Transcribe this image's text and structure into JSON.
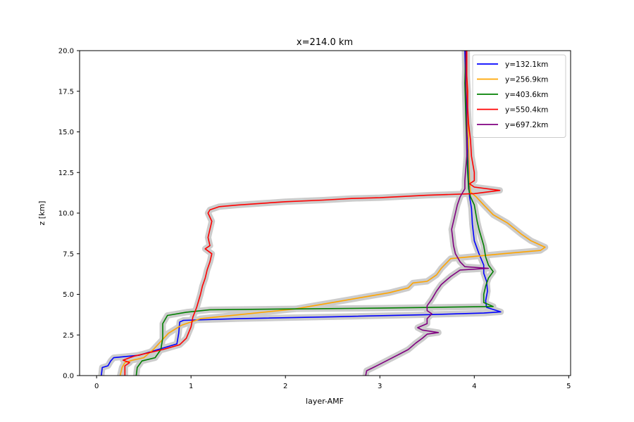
{
  "chart_data": {
    "type": "line",
    "title": "x=214.0 km",
    "xlabel": "layer-AMF",
    "ylabel": "z [km]",
    "xlim": [
      -0.18,
      5.02
    ],
    "ylim": [
      0,
      20
    ],
    "xticks": [
      0,
      1,
      2,
      3,
      4,
      5
    ],
    "yticks": [
      "0.0",
      "2.5",
      "5.0",
      "7.5",
      "10.0",
      "12.5",
      "15.0",
      "17.5",
      "20.0"
    ],
    "grid": false,
    "legend_position": "top-right",
    "band_color": "#cccccc",
    "series": [
      {
        "name": "y=132.1km",
        "color": "#0000ff",
        "points": [
          [
            0.05,
            0
          ],
          [
            0.06,
            0.5
          ],
          [
            0.12,
            0.6
          ],
          [
            0.15,
            0.9
          ],
          [
            0.18,
            1.1
          ],
          [
            0.45,
            1.25
          ],
          [
            0.65,
            1.6
          ],
          [
            0.85,
            1.95
          ],
          [
            0.87,
            2.6
          ],
          [
            0.88,
            3.3
          ],
          [
            0.92,
            3.4
          ],
          [
            1.5,
            3.5
          ],
          [
            2.5,
            3.62
          ],
          [
            3.5,
            3.75
          ],
          [
            4.1,
            3.85
          ],
          [
            4.28,
            3.92
          ],
          [
            4.13,
            4.2
          ],
          [
            4.12,
            4.6
          ],
          [
            4.14,
            5.2
          ],
          [
            4.13,
            5.8
          ],
          [
            4.1,
            6.3
          ],
          [
            4.1,
            6.8
          ],
          [
            4.05,
            7.5
          ],
          [
            4.0,
            8.3
          ],
          [
            3.98,
            9.3
          ],
          [
            3.97,
            10.3
          ],
          [
            3.95,
            11.0
          ],
          [
            3.94,
            12.0
          ],
          [
            3.93,
            13.5
          ],
          [
            3.92,
            15.5
          ],
          [
            3.91,
            17.5
          ],
          [
            3.9,
            20
          ]
        ]
      },
      {
        "name": "y=256.9km",
        "color": "#ffa500",
        "points": [
          [
            0.25,
            0
          ],
          [
            0.27,
            0.5
          ],
          [
            0.3,
            0.8
          ],
          [
            0.38,
            0.95
          ],
          [
            0.5,
            1.1
          ],
          [
            0.6,
            1.6
          ],
          [
            0.68,
            2.1
          ],
          [
            0.76,
            2.6
          ],
          [
            0.9,
            3.1
          ],
          [
            1.1,
            3.5
          ],
          [
            1.6,
            3.8
          ],
          [
            2.1,
            4.1
          ],
          [
            2.5,
            4.5
          ],
          [
            2.8,
            4.8
          ],
          [
            3.1,
            5.1
          ],
          [
            3.3,
            5.4
          ],
          [
            3.35,
            5.7
          ],
          [
            3.5,
            5.8
          ],
          [
            3.6,
            6.2
          ],
          [
            3.65,
            6.6
          ],
          [
            3.75,
            7.2
          ],
          [
            4.3,
            7.5
          ],
          [
            4.7,
            7.7
          ],
          [
            4.75,
            7.9
          ],
          [
            4.6,
            8.3
          ],
          [
            4.5,
            8.7
          ],
          [
            4.35,
            9.4
          ],
          [
            4.2,
            9.9
          ],
          [
            4.1,
            10.5
          ],
          [
            4.02,
            11.0
          ],
          [
            3.96,
            11.3
          ],
          [
            3.95,
            12.0
          ],
          [
            3.94,
            14.0
          ],
          [
            3.93,
            16.0
          ],
          [
            3.92,
            18.0
          ],
          [
            3.92,
            20
          ]
        ]
      },
      {
        "name": "y=403.6km",
        "color": "#008000",
        "points": [
          [
            0.42,
            0
          ],
          [
            0.43,
            0.5
          ],
          [
            0.48,
            0.9
          ],
          [
            0.62,
            1.1
          ],
          [
            0.68,
            1.6
          ],
          [
            0.7,
            2.3
          ],
          [
            0.7,
            3.2
          ],
          [
            0.75,
            3.7
          ],
          [
            0.95,
            3.9
          ],
          [
            1.2,
            4.05
          ],
          [
            2.0,
            4.1
          ],
          [
            3.0,
            4.15
          ],
          [
            4.2,
            4.25
          ],
          [
            4.1,
            4.5
          ],
          [
            4.1,
            5.0
          ],
          [
            4.12,
            5.5
          ],
          [
            4.15,
            6.0
          ],
          [
            4.2,
            6.4
          ],
          [
            4.15,
            6.8
          ],
          [
            4.12,
            7.3
          ],
          [
            4.1,
            8.0
          ],
          [
            4.05,
            9.0
          ],
          [
            4.03,
            9.5
          ],
          [
            4.0,
            10.5
          ],
          [
            3.96,
            11.0
          ],
          [
            3.94,
            11.5
          ],
          [
            3.93,
            12.5
          ],
          [
            3.92,
            14.0
          ],
          [
            3.91,
            16.0
          ],
          [
            3.9,
            18.0
          ],
          [
            3.91,
            20
          ]
        ]
      },
      {
        "name": "y=550.4km",
        "color": "#ff0000",
        "points": [
          [
            0.3,
            0
          ],
          [
            0.3,
            0.6
          ],
          [
            0.35,
            0.8
          ],
          [
            0.28,
            0.95
          ],
          [
            0.35,
            1.1
          ],
          [
            0.4,
            1.2
          ],
          [
            0.7,
            1.6
          ],
          [
            0.88,
            1.9
          ],
          [
            0.95,
            2.3
          ],
          [
            1.0,
            3.0
          ],
          [
            1.02,
            3.6
          ],
          [
            1.06,
            4.2
          ],
          [
            1.1,
            5.0
          ],
          [
            1.12,
            5.5
          ],
          [
            1.15,
            6.0
          ],
          [
            1.17,
            6.5
          ],
          [
            1.2,
            7.0
          ],
          [
            1.22,
            7.5
          ],
          [
            1.15,
            7.8
          ],
          [
            1.2,
            8.0
          ],
          [
            1.18,
            8.5
          ],
          [
            1.2,
            9.0
          ],
          [
            1.22,
            9.5
          ],
          [
            1.18,
            10.0
          ],
          [
            1.2,
            10.2
          ],
          [
            1.3,
            10.4
          ],
          [
            1.5,
            10.5
          ],
          [
            2.0,
            10.7
          ],
          [
            2.4,
            10.8
          ],
          [
            2.7,
            10.9
          ],
          [
            3.0,
            10.95
          ],
          [
            3.5,
            11.1
          ],
          [
            4.0,
            11.2
          ],
          [
            4.27,
            11.4
          ],
          [
            4.0,
            11.6
          ],
          [
            3.95,
            11.8
          ],
          [
            4.0,
            12.0
          ],
          [
            4.0,
            12.5
          ],
          [
            3.97,
            13.5
          ],
          [
            3.96,
            14.5
          ],
          [
            3.94,
            15.5
          ],
          [
            3.93,
            16.5
          ],
          [
            3.93,
            17.5
          ],
          [
            3.92,
            18.5
          ],
          [
            3.92,
            20
          ]
        ]
      },
      {
        "name": "y=697.2km",
        "color": "#800080",
        "points": [
          [
            2.85,
            0
          ],
          [
            2.86,
            0.3
          ],
          [
            2.93,
            0.5
          ],
          [
            3.0,
            0.7
          ],
          [
            3.1,
            1.0
          ],
          [
            3.2,
            1.3
          ],
          [
            3.3,
            1.6
          ],
          [
            3.38,
            2.0
          ],
          [
            3.45,
            2.3
          ],
          [
            3.5,
            2.55
          ],
          [
            3.62,
            2.65
          ],
          [
            3.45,
            2.8
          ],
          [
            3.4,
            2.95
          ],
          [
            3.5,
            3.2
          ],
          [
            3.5,
            3.5
          ],
          [
            3.55,
            3.8
          ],
          [
            3.5,
            4.0
          ],
          [
            3.5,
            4.3
          ],
          [
            3.55,
            4.7
          ],
          [
            3.6,
            5.2
          ],
          [
            3.65,
            5.6
          ],
          [
            3.75,
            6.1
          ],
          [
            3.85,
            6.5
          ],
          [
            4.15,
            6.6
          ],
          [
            3.9,
            6.7
          ],
          [
            3.85,
            7.0
          ],
          [
            3.8,
            7.5
          ],
          [
            3.78,
            8.0
          ],
          [
            3.77,
            8.5
          ],
          [
            3.76,
            9.0
          ],
          [
            3.78,
            9.5
          ],
          [
            3.8,
            10.0
          ],
          [
            3.82,
            10.5
          ],
          [
            3.85,
            11.0
          ],
          [
            3.9,
            11.5
          ],
          [
            3.9,
            12.0
          ],
          [
            3.92,
            13.5
          ],
          [
            3.92,
            15.0
          ],
          [
            3.92,
            16.5
          ],
          [
            3.91,
            18.0
          ],
          [
            3.91,
            20
          ]
        ]
      }
    ]
  }
}
